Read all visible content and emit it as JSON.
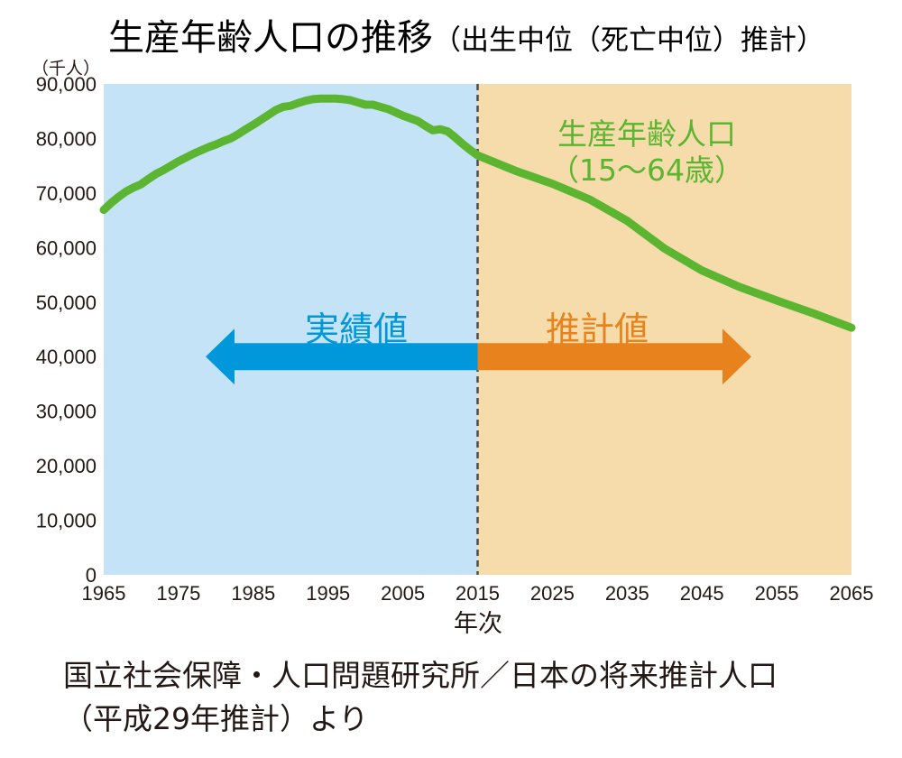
{
  "chart_data": {
    "type": "line",
    "title": "生産年齢人口の推移",
    "subtitle": "（出生中位（死亡中位）推計）",
    "y_unit": "（千人）",
    "xlabel": "年次",
    "ylim": [
      0,
      90000
    ],
    "xlim": [
      1965,
      2065
    ],
    "yticks": [
      "0",
      "10,000",
      "20,000",
      "30,000",
      "40,000",
      "50,000",
      "60,000",
      "70,000",
      "80,000",
      "90,000"
    ],
    "xticks": [
      "1965",
      "1975",
      "1985",
      "1995",
      "2005",
      "2015",
      "2025",
      "2035",
      "2045",
      "2055",
      "2065"
    ],
    "grid": false,
    "divider_year": 2015,
    "regions": [
      {
        "label": "実績値",
        "from": 1965,
        "to": 2015,
        "color": "#c5e3f6",
        "arrow_color": "#0098db",
        "label_color": "#0098db"
      },
      {
        "label": "推計値",
        "from": 2015,
        "to": 2065,
        "color": "#f5dcaa",
        "arrow_color": "#e8821c",
        "label_color": "#e8821c"
      }
    ],
    "series": [
      {
        "name": "生産年齢人口",
        "name_sub": "（15～64歳）",
        "color": "#5bb531",
        "points": [
          [
            1965,
            66900
          ],
          [
            1966,
            68200
          ],
          [
            1967,
            69300
          ],
          [
            1968,
            70300
          ],
          [
            1969,
            71000
          ],
          [
            1970,
            71600
          ],
          [
            1971,
            72600
          ],
          [
            1972,
            73500
          ],
          [
            1973,
            74200
          ],
          [
            1974,
            75000
          ],
          [
            1975,
            75800
          ],
          [
            1976,
            76500
          ],
          [
            1977,
            77200
          ],
          [
            1978,
            77800
          ],
          [
            1979,
            78400
          ],
          [
            1980,
            78900
          ],
          [
            1981,
            79500
          ],
          [
            1982,
            80000
          ],
          [
            1983,
            80800
          ],
          [
            1984,
            81700
          ],
          [
            1985,
            82500
          ],
          [
            1986,
            83400
          ],
          [
            1987,
            84300
          ],
          [
            1988,
            85200
          ],
          [
            1989,
            85800
          ],
          [
            1990,
            86000
          ],
          [
            1991,
            86500
          ],
          [
            1992,
            86900
          ],
          [
            1993,
            87200
          ],
          [
            1994,
            87300
          ],
          [
            1995,
            87300
          ],
          [
            1996,
            87300
          ],
          [
            1997,
            87200
          ],
          [
            1998,
            87000
          ],
          [
            1999,
            86600
          ],
          [
            2000,
            86200
          ],
          [
            2001,
            86200
          ],
          [
            2002,
            85800
          ],
          [
            2003,
            85400
          ],
          [
            2004,
            84800
          ],
          [
            2005,
            84200
          ],
          [
            2006,
            83700
          ],
          [
            2007,
            83200
          ],
          [
            2008,
            82300
          ],
          [
            2009,
            81500
          ],
          [
            2010,
            81700
          ],
          [
            2011,
            81300
          ],
          [
            2012,
            80200
          ],
          [
            2013,
            79000
          ],
          [
            2014,
            77900
          ],
          [
            2015,
            76900
          ],
          [
            2020,
            74100
          ],
          [
            2025,
            71700
          ],
          [
            2030,
            68800
          ],
          [
            2035,
            64900
          ],
          [
            2040,
            59800
          ],
          [
            2045,
            55800
          ],
          [
            2050,
            52800
          ],
          [
            2055,
            50300
          ],
          [
            2060,
            47900
          ],
          [
            2065,
            45300
          ]
        ]
      }
    ],
    "source": [
      "国立社会保障・人口問題研究所／日本の将来推計人口",
      "（平成29年推計）より"
    ]
  }
}
